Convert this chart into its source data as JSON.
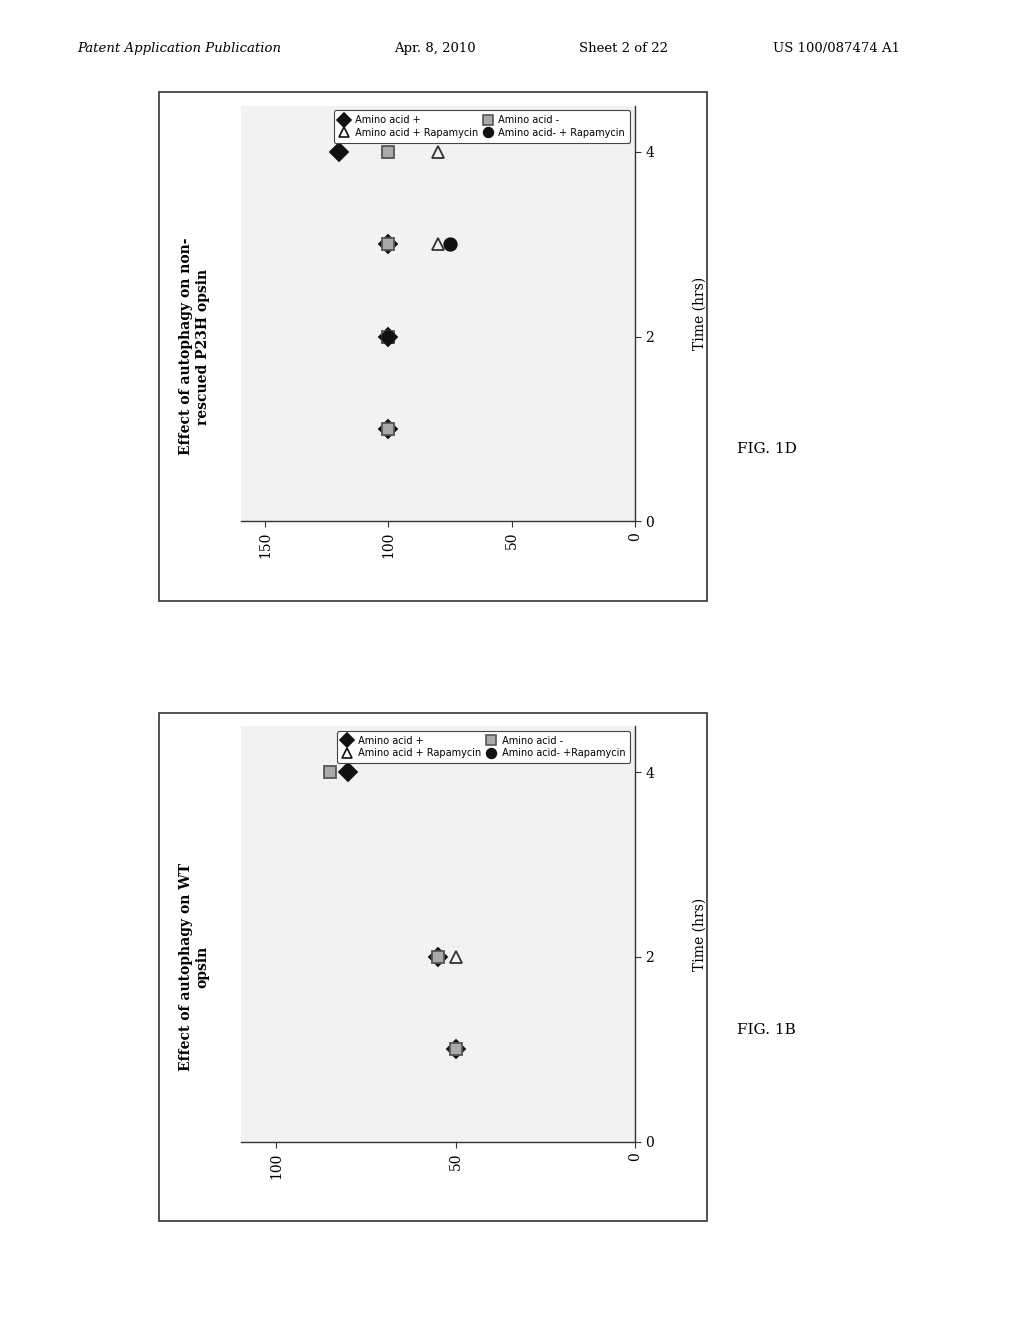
{
  "fig_width": 10.24,
  "fig_height": 13.2,
  "background_color": "#ffffff",
  "header_text": "Patent Application Publication",
  "header_date": "Apr. 8, 2010",
  "header_sheet": "Sheet 2 of 22",
  "header_patent": "US 100/087474 A1",
  "chart_top": {
    "title": "Effect of autophagy on non-\nrescued P23H opsin",
    "xlabel": "Time (hrs)",
    "pct_lim": [
      0,
      160
    ],
    "time_lim": [
      0,
      4.5
    ],
    "pct_ticks": [
      0,
      50,
      100,
      150
    ],
    "time_ticks": [
      0,
      2,
      4
    ],
    "fignum": "FIG. 1D",
    "legend_rows": [
      {
        "label": " Amino acid +",
        "marker": "D",
        "color": "#111111",
        "mfc": "#111111"
      },
      {
        "label": " Amino acid + Rapamycin",
        "marker": "^",
        "color": "#111111",
        "mfc": "none"
      },
      {
        "label": " Amino acid -",
        "marker": "s",
        "color": "#555555",
        "mfc": "#aaaaaa"
      },
      {
        "label": " Amino acid- + Rapamycin",
        "marker": "o",
        "color": "#111111",
        "mfc": "#111111"
      }
    ],
    "series": [
      {
        "name": "Amino acid +",
        "marker": "D",
        "color": "#111111",
        "mfc": "#111111",
        "time": [
          1,
          2,
          3,
          4
        ],
        "pct": [
          100,
          100,
          100,
          120
        ]
      },
      {
        "name": "Amino acid + Rapamycin",
        "marker": "^",
        "color": "#333333",
        "mfc": "none",
        "time": [
          2,
          3,
          4
        ],
        "pct": [
          100,
          80,
          80
        ]
      },
      {
        "name": "Amino acid -",
        "marker": "s",
        "color": "#555555",
        "mfc": "#aaaaaa",
        "time": [
          1,
          2,
          3,
          4
        ],
        "pct": [
          100,
          100,
          100,
          100
        ]
      },
      {
        "name": "Amino acid- + Rapamycin",
        "marker": "o",
        "color": "#111111",
        "mfc": "#111111",
        "time": [
          2,
          3
        ],
        "pct": [
          100,
          75
        ]
      }
    ]
  },
  "chart_bottom": {
    "title": "Effect of autophagy on WT\nopsin",
    "xlabel": "Time (hrs)",
    "pct_lim": [
      0,
      110
    ],
    "time_lim": [
      0,
      4.5
    ],
    "pct_ticks": [
      0,
      50,
      100
    ],
    "time_ticks": [
      0,
      2,
      4
    ],
    "fignum": "FIG. 1B",
    "legend_rows": [
      {
        "label": " Amino acid +",
        "marker": "D",
        "color": "#111111",
        "mfc": "#111111"
      },
      {
        "label": " Amino acid + Rapamycin",
        "marker": "^",
        "color": "#111111",
        "mfc": "none"
      },
      {
        "label": " Amino acid -",
        "marker": "s",
        "color": "#555555",
        "mfc": "#aaaaaa"
      },
      {
        "label": " Amino acid- +Rapamycin",
        "marker": "o",
        "color": "#111111",
        "mfc": "#111111"
      }
    ],
    "series": [
      {
        "name": "Amino acid +",
        "marker": "D",
        "color": "#111111",
        "mfc": "#111111",
        "time": [
          1,
          2,
          4
        ],
        "pct": [
          50,
          55,
          80
        ]
      },
      {
        "name": "Amino acid + Rapamycin",
        "marker": "^",
        "color": "#333333",
        "mfc": "none",
        "time": [
          2
        ],
        "pct": [
          50
        ]
      },
      {
        "name": "Amino acid -",
        "marker": "s",
        "color": "#555555",
        "mfc": "#aaaaaa",
        "time": [
          1,
          2,
          4
        ],
        "pct": [
          50,
          55,
          85
        ]
      },
      {
        "name": "Amino acid- + Rapamycin",
        "marker": "o",
        "color": "#111111",
        "mfc": "#111111",
        "time": [],
        "pct": []
      }
    ]
  }
}
